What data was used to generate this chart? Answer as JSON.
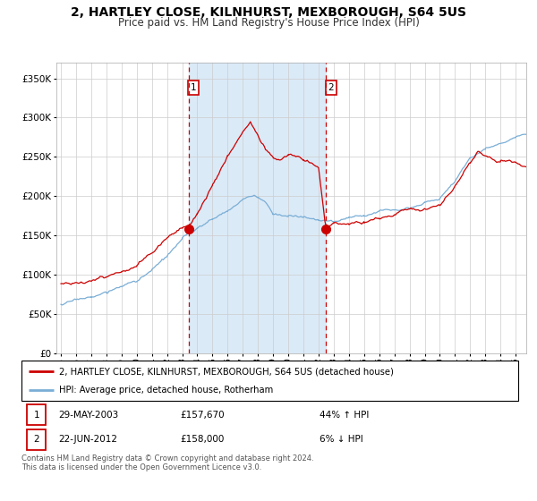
{
  "title": "2, HARTLEY CLOSE, KILNHURST, MEXBOROUGH, S64 5US",
  "subtitle": "Price paid vs. HM Land Registry's House Price Index (HPI)",
  "title_fontsize": 10,
  "subtitle_fontsize": 8.5,
  "legend_line1": "2, HARTLEY CLOSE, KILNHURST, MEXBOROUGH, S64 5US (detached house)",
  "legend_line2": "HPI: Average price, detached house, Rotherham",
  "transaction1_date": "29-MAY-2003",
  "transaction1_price": "£157,670",
  "transaction1_hpi": "44% ↑ HPI",
  "transaction2_date": "22-JUN-2012",
  "transaction2_price": "£158,000",
  "transaction2_hpi": "6% ↓ HPI",
  "footnote": "Contains HM Land Registry data © Crown copyright and database right 2024.\nThis data is licensed under the Open Government Licence v3.0.",
  "red_color": "#cc0000",
  "blue_color": "#7aaed6",
  "shading_color": "#dbeaf7",
  "background_color": "#ffffff",
  "grid_color": "#cccccc",
  "ylim": [
    0,
    370000
  ],
  "ylabel_ticks": [
    0,
    50000,
    100000,
    150000,
    200000,
    250000,
    300000,
    350000
  ],
  "transaction1_x": 2003.41,
  "transaction1_y": 157670,
  "transaction2_x": 2012.47,
  "transaction2_y": 158000,
  "xmin": 1994.7,
  "xmax": 2025.7
}
